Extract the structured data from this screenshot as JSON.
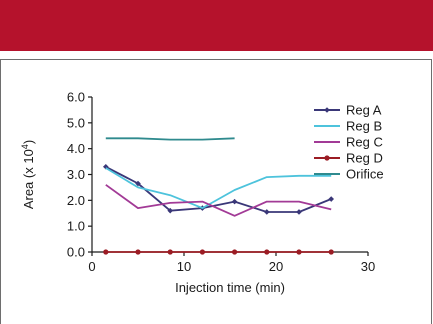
{
  "chart_data": {
    "type": "line",
    "xlabel": "Injection time (min)",
    "ylabel_base": "Area (x 10",
    "ylabel_exp": "4",
    "ylabel_close": ")",
    "xlim": [
      0,
      30
    ],
    "ylim": [
      0,
      6
    ],
    "x_ticks": [
      0,
      10,
      20,
      30
    ],
    "x_tick_labels": [
      "0",
      "10",
      "20",
      "30"
    ],
    "y_ticks": [
      0,
      1,
      2,
      3,
      4,
      5,
      6
    ],
    "y_tick_labels": [
      "0.0",
      "1.0",
      "2.0",
      "3.0",
      "4.0",
      "5.0",
      "6.0"
    ],
    "grid": false,
    "legend_position": "right",
    "series": [
      {
        "name": "Reg A",
        "color": "#3a3778",
        "marker": "diamond",
        "x": [
          1.5,
          5.0,
          8.5,
          12.0,
          15.5,
          19.0,
          22.5,
          26.0
        ],
        "y": [
          3.3,
          2.65,
          1.6,
          1.7,
          1.95,
          1.55,
          1.55,
          2.05
        ]
      },
      {
        "name": "Reg B",
        "color": "#4dc3dc",
        "marker": "none",
        "x": [
          1.5,
          5.0,
          8.5,
          12.0,
          15.5,
          19.0,
          22.5,
          26.0
        ],
        "y": [
          3.25,
          2.5,
          2.2,
          1.7,
          2.4,
          2.9,
          2.95,
          2.95
        ]
      },
      {
        "name": "Reg C",
        "color": "#a23a96",
        "marker": "none",
        "x": [
          1.5,
          5.0,
          8.5,
          12.0,
          15.5,
          19.0,
          22.5,
          26.0
        ],
        "y": [
          2.6,
          1.7,
          1.9,
          1.95,
          1.4,
          1.95,
          1.95,
          1.65
        ]
      },
      {
        "name": "Reg D",
        "color": "#9b1c24",
        "marker": "circle",
        "x": [
          1.5,
          5.0,
          8.5,
          12.0,
          15.5,
          19.0,
          22.5,
          26.0
        ],
        "y": [
          0.0,
          0.0,
          0.0,
          0.0,
          0.0,
          0.0,
          0.0,
          0.0
        ]
      },
      {
        "name": "Orifice",
        "color": "#2f8a8e",
        "marker": "none",
        "x": [
          1.5,
          5.0,
          8.5,
          12.0,
          15.5
        ],
        "y": [
          4.4,
          4.4,
          4.35,
          4.35,
          4.4
        ]
      }
    ]
  }
}
